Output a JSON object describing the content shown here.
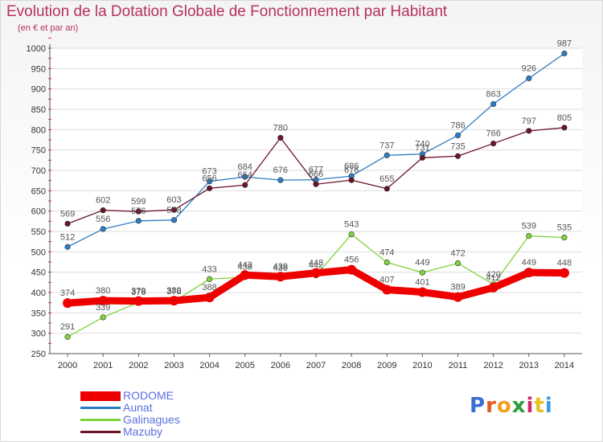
{
  "title": "Evolution de la Dotation Globale de Fonctionnement par Habitant",
  "subtitle": "(en € et par an)",
  "logo": {
    "text": "Proxiti",
    "letters": [
      "P",
      "r",
      "o",
      "x",
      "i",
      "t",
      "i"
    ],
    "colors": [
      "#3a6fd0",
      "#e85a1e",
      "#f0a020",
      "#2a9e3a",
      "#d02a6a",
      "#e8c020",
      "#3a9ae0"
    ]
  },
  "chart_data": {
    "type": "line",
    "x": [
      2000,
      2001,
      2002,
      2003,
      2004,
      2005,
      2006,
      2007,
      2008,
      2009,
      2010,
      2011,
      2012,
      2013,
      2014
    ],
    "ylim": [
      250,
      1000
    ],
    "yticks": [
      250,
      300,
      350,
      400,
      450,
      500,
      550,
      600,
      650,
      700,
      750,
      800,
      850,
      900,
      950,
      1000
    ],
    "grid": "horizontal",
    "legend_position": "bottom-left",
    "series": [
      {
        "name": "RODOME",
        "color": "#ee0000",
        "values": [
          374,
          380,
          379,
          380,
          388,
          443,
          439,
          448,
          456,
          407,
          401,
          389,
          412,
          449,
          448
        ]
      },
      {
        "name": "Aunat",
        "color": "#2e7cc4",
        "values": [
          512,
          556,
          576,
          578,
          673,
          684,
          676,
          677,
          686,
          737,
          740,
          786,
          863,
          926,
          987
        ]
      },
      {
        "name": "Galinagues",
        "color": "#7fd33a",
        "values": [
          291,
          339,
          376,
          378,
          433,
          438,
          436,
          442,
          543,
          474,
          449,
          472,
          420,
          539,
          535
        ]
      },
      {
        "name": "Mazuby",
        "color": "#6a1428",
        "values": [
          569,
          602,
          599,
          603,
          656,
          664,
          780,
          666,
          676,
          655,
          731,
          735,
          766,
          797,
          805
        ]
      }
    ]
  }
}
